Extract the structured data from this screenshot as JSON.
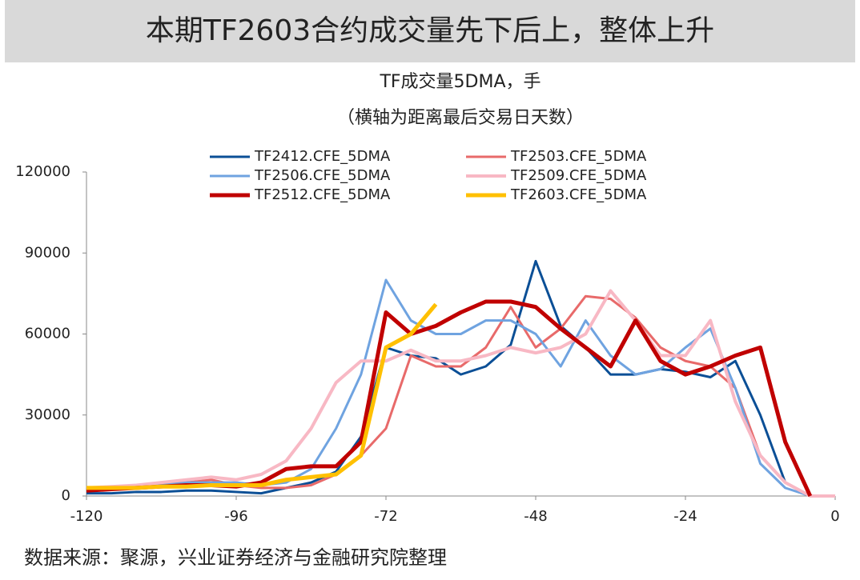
{
  "header": {
    "title": "本期TF2603合约成交量先下后上，整体上升"
  },
  "chart_data": {
    "type": "line",
    "title": "TF成交量5DMA，手",
    "subtitle": "（横轴为距离最后交易日天数）",
    "x": [
      -120,
      -116,
      -112,
      -108,
      -104,
      -100,
      -96,
      -92,
      -88,
      -84,
      -80,
      -76,
      -72,
      -68,
      -64,
      -60,
      -56,
      -52,
      -48,
      -44,
      -40,
      -36,
      -32,
      -28,
      -24,
      -20,
      -16,
      -12,
      -8,
      -4,
      0
    ],
    "series": [
      {
        "name": "TF2412.CFE_5DMA",
        "color": "#0b4f96",
        "width": 3,
        "values": [
          1000,
          1000,
          1500,
          1500,
          2000,
          2000,
          1500,
          1000,
          3000,
          5000,
          9000,
          22000,
          55000,
          52000,
          51000,
          45000,
          48000,
          56000,
          87000,
          63000,
          55000,
          45000,
          45000,
          47000,
          46000,
          44000,
          50000,
          30000,
          5000,
          0,
          0
        ]
      },
      {
        "name": "TF2503.CFE_5DMA",
        "color": "#e86a6a",
        "width": 3,
        "values": [
          3000,
          3000,
          3500,
          4000,
          5000,
          6000,
          4000,
          3000,
          3000,
          4000,
          8000,
          15000,
          25000,
          52000,
          48000,
          48000,
          55000,
          70000,
          55000,
          62000,
          74000,
          73000,
          66000,
          55000,
          50000,
          48000,
          40000,
          15000,
          5000,
          0,
          0
        ]
      },
      {
        "name": "TF2506.CFE_5DMA",
        "color": "#6fa3e0",
        "width": 3,
        "values": [
          2000,
          2500,
          3000,
          4000,
          5000,
          5000,
          5000,
          4000,
          5000,
          10000,
          25000,
          45000,
          80000,
          65000,
          60000,
          60000,
          65000,
          65000,
          60000,
          48000,
          65000,
          52000,
          45000,
          47000,
          55000,
          62000,
          40000,
          12000,
          3000,
          0,
          0
        ]
      },
      {
        "name": "TF2509.CFE_5DMA",
        "color": "#f8b8c4",
        "width": 4,
        "values": [
          3000,
          3500,
          4000,
          5000,
          6000,
          7000,
          6000,
          8000,
          13000,
          25000,
          42000,
          50000,
          50000,
          54000,
          50000,
          50000,
          52000,
          55000,
          53000,
          55000,
          60000,
          76000,
          65000,
          52000,
          52000,
          65000,
          35000,
          15000,
          5000,
          0,
          0
        ]
      },
      {
        "name": "TF2512.CFE_5DMA",
        "color": "#c00000",
        "width": 5,
        "values": [
          2000,
          2500,
          3000,
          3500,
          4000,
          4000,
          3500,
          5000,
          10000,
          11000,
          11000,
          20000,
          68000,
          60000,
          63000,
          68000,
          72000,
          72000,
          70000,
          62000,
          55000,
          48000,
          65000,
          50000,
          45000,
          48000,
          52000,
          55000,
          20000,
          0,
          null
        ]
      },
      {
        "name": "TF2603.CFE_5DMA",
        "color": "#ffc000",
        "width": 5,
        "values": [
          3000,
          3000,
          3000,
          3500,
          3500,
          4000,
          4000,
          4000,
          6000,
          7000,
          8000,
          15000,
          55000,
          60000,
          71000,
          null,
          null,
          null,
          null,
          null,
          null,
          null,
          null,
          null,
          null,
          null,
          null,
          null,
          null,
          null,
          null
        ]
      }
    ],
    "xlim": [
      -120,
      0
    ],
    "xticks": [
      -120,
      -96,
      -72,
      -48,
      -24,
      0
    ],
    "ylim": [
      0,
      120000
    ],
    "yticks": [
      0,
      30000,
      60000,
      90000,
      120000
    ]
  },
  "source": "数据来源：聚源，兴业证券经济与金融研究院整理"
}
